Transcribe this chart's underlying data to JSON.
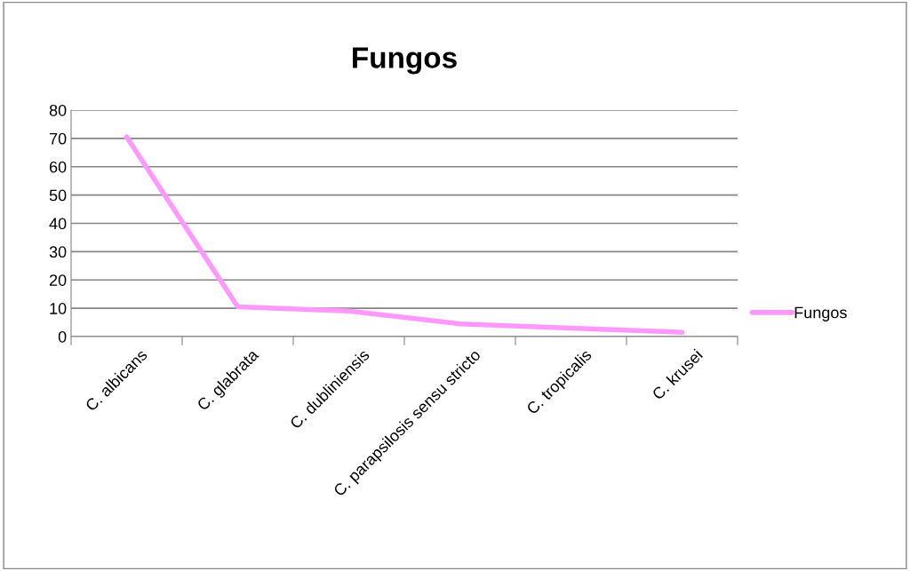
{
  "chart_data": {
    "type": "line",
    "title": "Fungos",
    "categories": [
      "C. albicans",
      "C. glabrata",
      "C. dubliniensis",
      "C. parapsilosis sensu stricto",
      "C. tropicalis",
      "C. krusei"
    ],
    "series": [
      {
        "name": "Fungos",
        "color": "#ff99ff",
        "values": [
          70.5,
          10.5,
          9,
          4.5,
          3,
          1.5
        ]
      }
    ],
    "ylim": [
      0,
      80
    ],
    "yticks": [
      0,
      10,
      20,
      30,
      40,
      50,
      60,
      70,
      80
    ],
    "grid": "y",
    "legend": "right",
    "marker": "none",
    "line_style": "solid"
  }
}
